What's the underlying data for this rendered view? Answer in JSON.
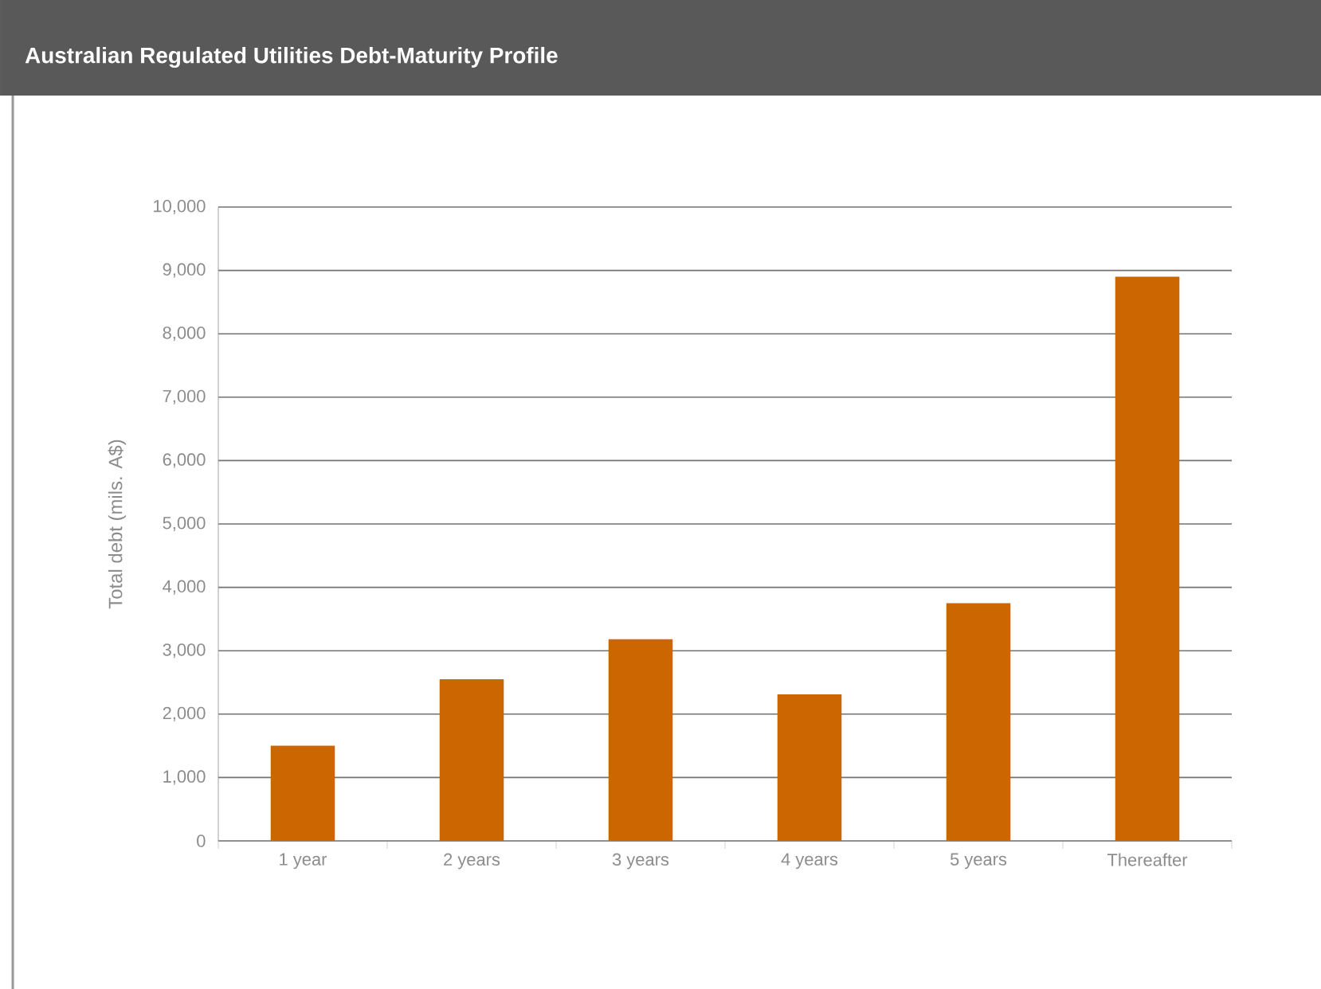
{
  "chart_data": {
    "type": "bar",
    "title": "Australian Regulated Utilities Debt-Maturity Profile",
    "ylabel": "Total debt (mils. A$)",
    "categories": [
      "1 year",
      "2 years",
      "3 years",
      "4 years",
      "5 years",
      "Thereafter"
    ],
    "values": [
      1500,
      2550,
      3180,
      2310,
      3750,
      8900
    ],
    "color": "#cc6600",
    "ylim": [
      0,
      10000
    ],
    "yticks": [
      0,
      {
        "value": 1000,
        "label": "1,000"
      },
      {
        "value": 2000,
        "label": "2,000"
      },
      {
        "value": 3000,
        "label": "3,000"
      },
      {
        "value": 4000,
        "label": "4,000"
      },
      {
        "value": 5000,
        "label": "5,000"
      },
      {
        "value": 6000,
        "label": "6,000"
      },
      {
        "value": 7000,
        "label": "7,000"
      },
      {
        "value": 8000,
        "label": "8,000"
      },
      {
        "value": 9000,
        "label": "9,000"
      },
      {
        "value": 10000,
        "label": "10,000"
      }
    ],
    "grid": "y"
  }
}
